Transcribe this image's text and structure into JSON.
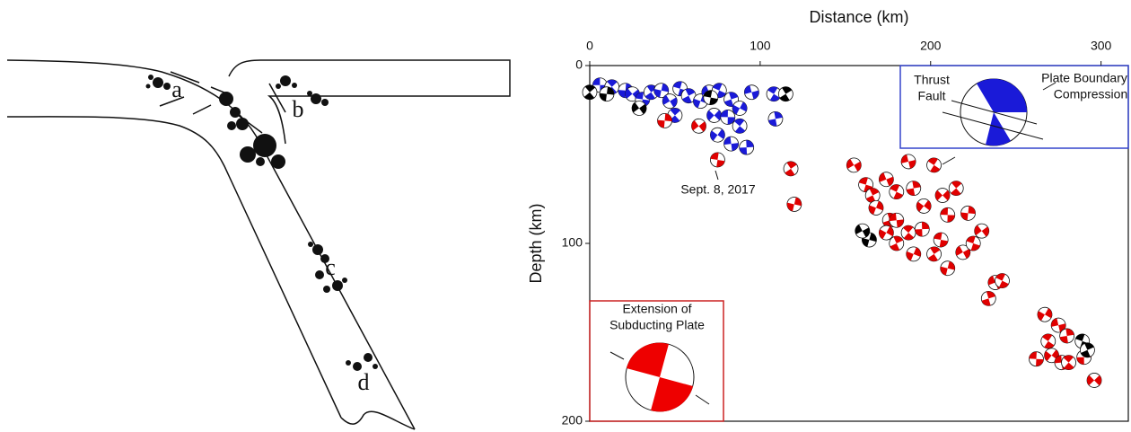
{
  "diagram": {
    "labels": [
      "a",
      "b",
      "c",
      "d"
    ]
  },
  "chart_data": {
    "type": "scatter",
    "xlabel": "Distance (km)",
    "ylabel": "Depth (km)",
    "xlim": [
      0,
      316
    ],
    "ylim": [
      0,
      200
    ],
    "xticks": [
      0,
      100,
      200,
      300
    ],
    "yticks": [
      0,
      100,
      200
    ],
    "annotations": [
      "Sept. 8, 2017",
      "Thrust",
      "Fault",
      "Plate Boundary",
      "Compression",
      "Extension of",
      "Subducting Plate"
    ],
    "series": [
      {
        "color": "#1a1ad8",
        "x": [
          6,
          13,
          21,
          25,
          31,
          36,
          42,
          47,
          53,
          58,
          65,
          70,
          76,
          83,
          88,
          95,
          108,
          109,
          75,
          83,
          88,
          92,
          73,
          81,
          50
        ],
        "values": [
          11,
          12,
          14,
          16,
          19,
          15,
          14,
          20,
          13,
          17,
          20,
          15,
          14,
          19,
          24,
          15,
          16,
          30,
          39,
          44,
          34,
          46,
          28,
          29,
          28
        ]
      },
      {
        "color": "#e00000",
        "x": [
          44,
          64,
          75,
          118,
          120,
          155,
          162,
          166,
          168,
          174,
          180,
          176,
          174,
          187,
          202,
          190,
          196,
          180,
          187,
          195,
          207,
          210,
          215,
          222,
          230,
          206,
          202,
          210,
          219,
          225,
          180,
          190,
          238,
          242,
          234,
          267,
          275,
          269,
          280,
          271,
          277,
          281,
          290,
          296,
          262
        ],
        "values": [
          31,
          34,
          53,
          58,
          78,
          56,
          67,
          73,
          80,
          64,
          71,
          87,
          94,
          54,
          56,
          69,
          79,
          87,
          94,
          92,
          73,
          84,
          69,
          83,
          93,
          98,
          106,
          114,
          105,
          100,
          100,
          106,
          122,
          121,
          131,
          140,
          146,
          155,
          152,
          163,
          167,
          167,
          164,
          177,
          165
        ]
      },
      {
        "color": "#000000",
        "x": [
          0,
          10,
          29,
          71,
          115,
          164,
          160,
          289,
          292
        ],
        "values": [
          15,
          16,
          24,
          18,
          16,
          98,
          93,
          155,
          160
        ]
      }
    ]
  }
}
